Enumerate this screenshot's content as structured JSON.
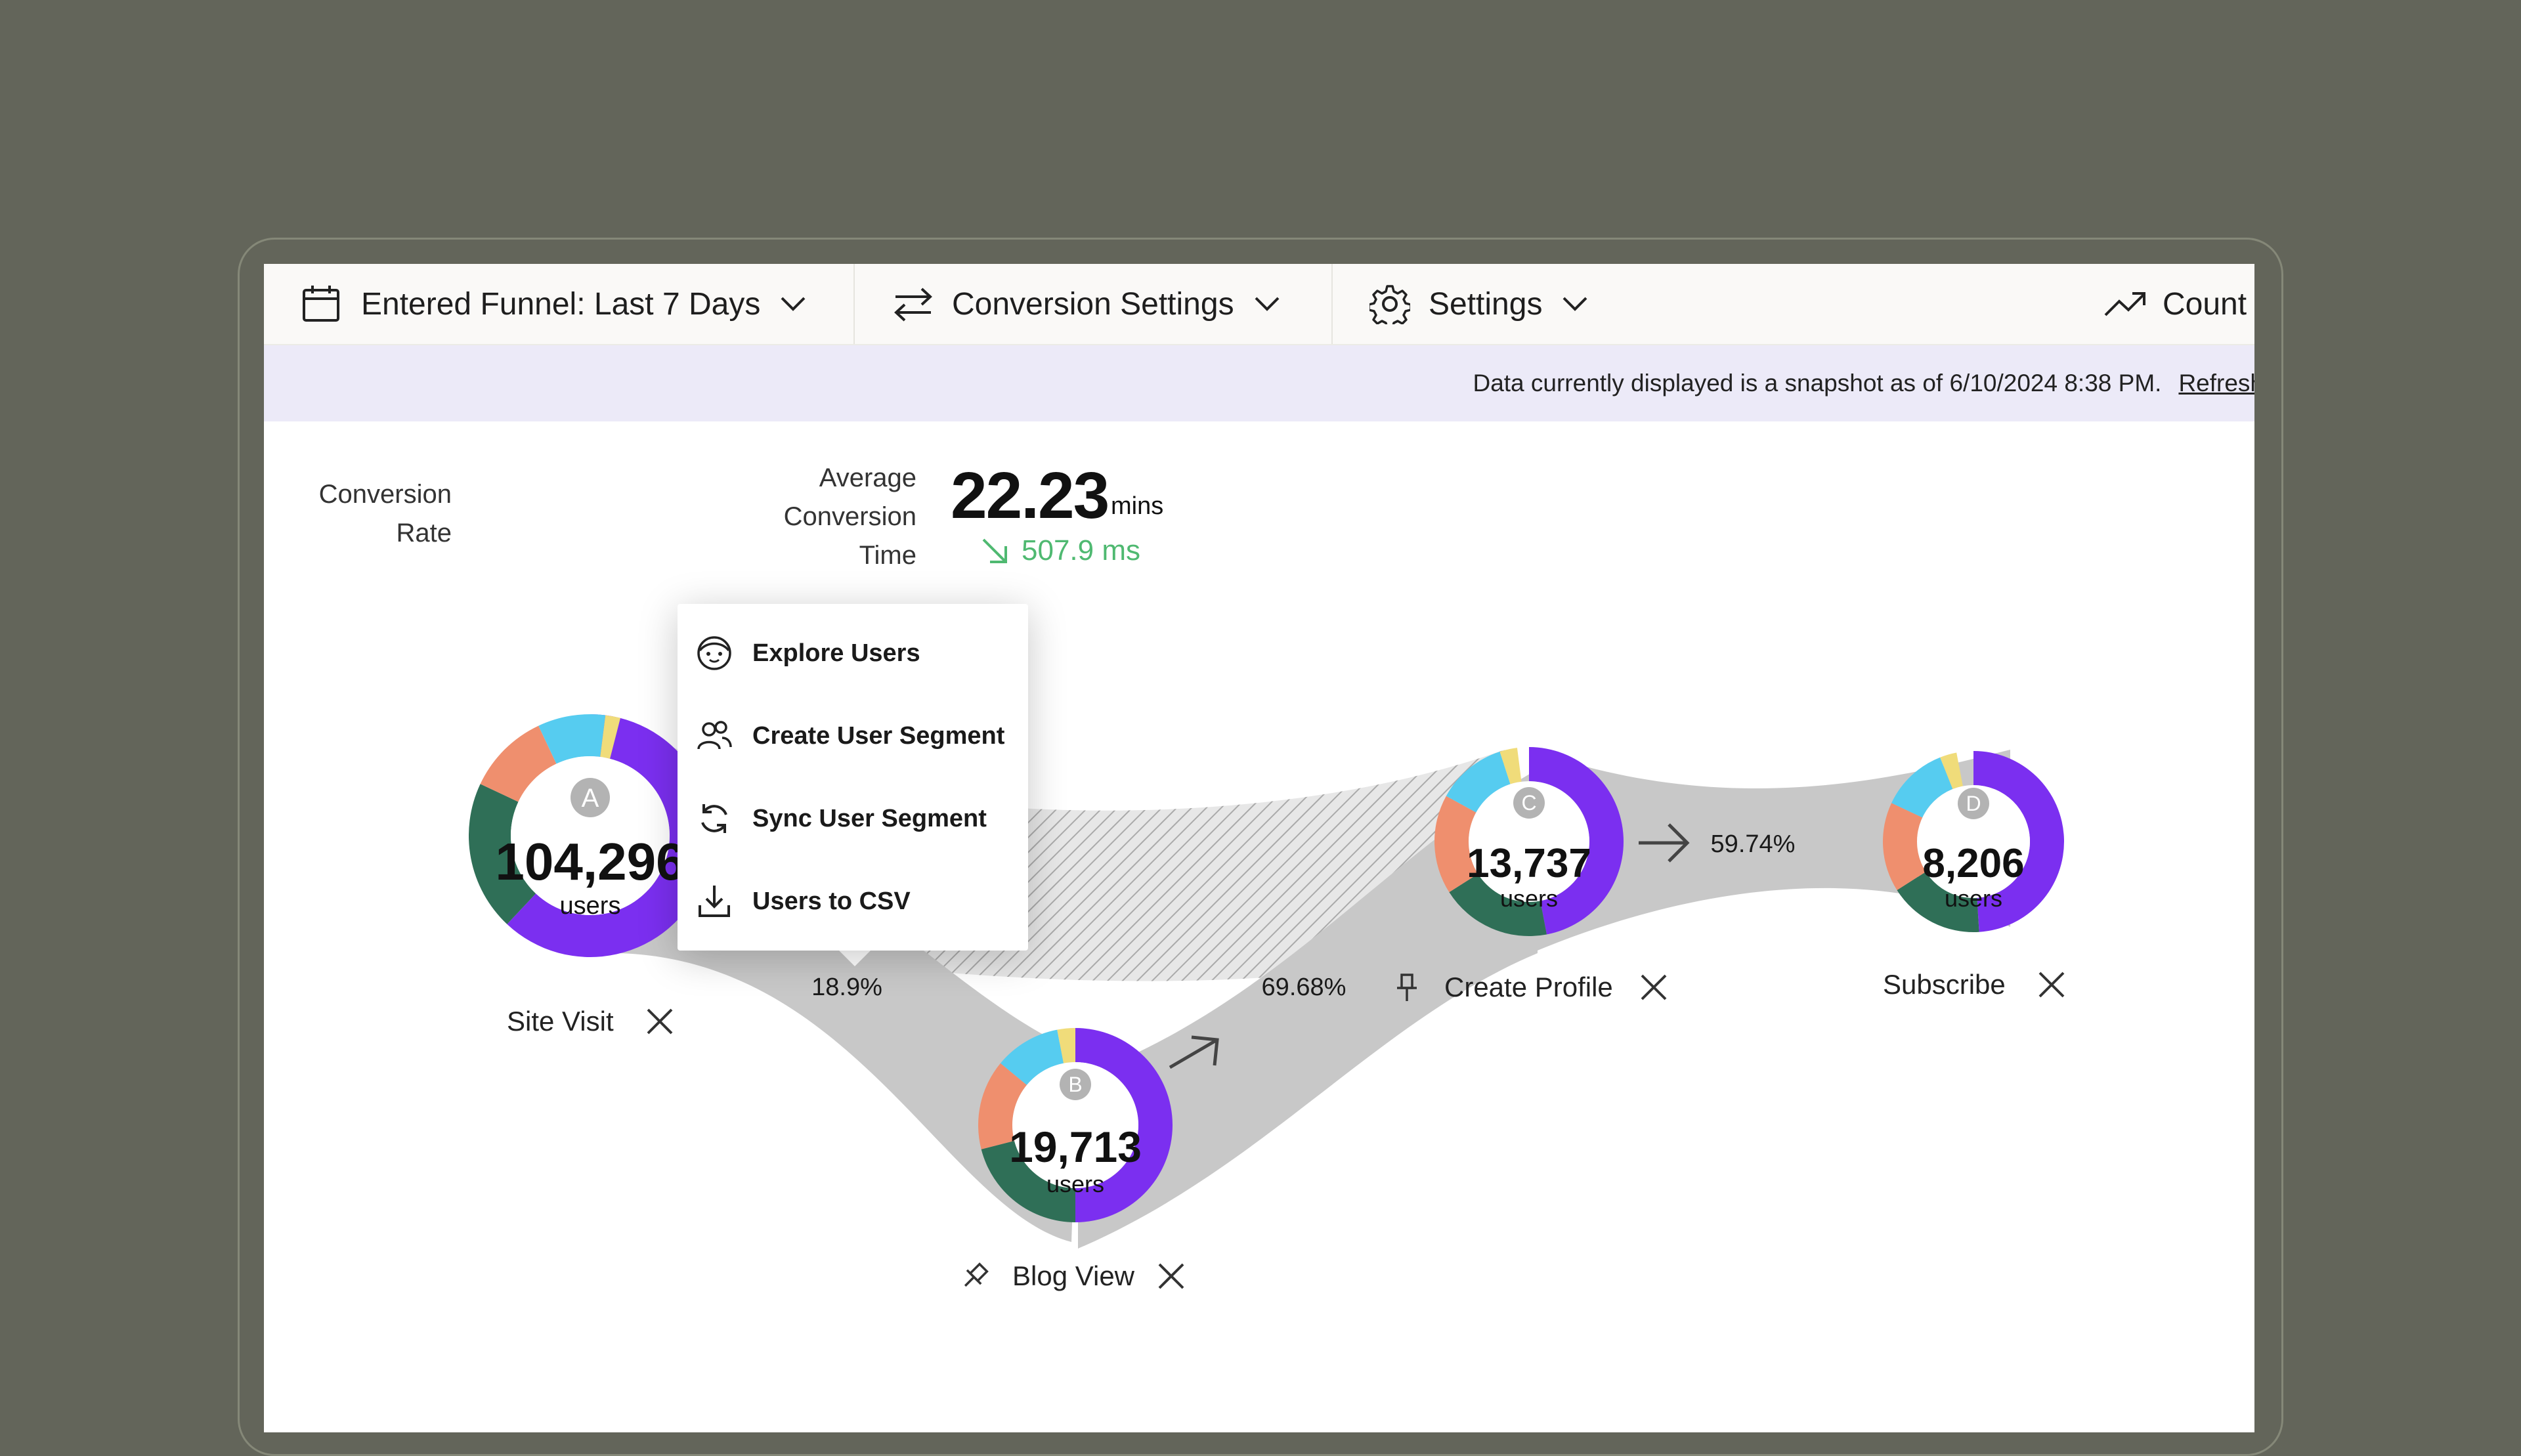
{
  "toolbar": {
    "date_filter": "Entered Funnel: Last 7 Days",
    "conversion_settings": "Conversion Settings",
    "settings": "Settings",
    "chart_type": "Count"
  },
  "banner": {
    "message": "Data currently displayed is a snapshot as of 6/10/2024 8:38 PM.",
    "refresh_link": "Refresh"
  },
  "stats": {
    "conversion_rate_label_line1": "Conversion",
    "conversion_rate_label_line2": "Rate",
    "avg_time_label_line1": "Average",
    "avg_time_label_line2": "Conversion",
    "avg_time_label_line3": "Time",
    "avg_time_value": "22.23",
    "avg_time_unit": "mins",
    "avg_time_delta": "507.9 ms"
  },
  "menu": {
    "items": [
      {
        "label": "Explore Users",
        "icon": "face-icon"
      },
      {
        "label": "Create User Segment",
        "icon": "users-icon"
      },
      {
        "label": "Sync User Segment",
        "icon": "sync-icon"
      },
      {
        "label": "Users to CSV",
        "icon": "download-icon"
      }
    ]
  },
  "colors": {
    "purple": "#7b2ff0",
    "green": "#2f6f57",
    "salmon": "#ef8f6e",
    "cyan": "#56ccf0",
    "yellow": "#f0dc7a",
    "flow": "#c8c8c8",
    "positive": "#4fb971"
  },
  "funnel": {
    "steps": [
      {
        "letter": "A",
        "count": "104,296",
        "unit": "users",
        "name": "Site Visit",
        "segments": [
          0.62,
          0.2,
          0.11,
          0.09,
          0.02
        ]
      },
      {
        "letter": "B",
        "count": "19,713",
        "unit": "users",
        "name": "Blog View",
        "segments": [
          0.5,
          0.21,
          0.15,
          0.11,
          0.03
        ]
      },
      {
        "letter": "C",
        "count": "13,737",
        "unit": "users",
        "name": "Create Profile",
        "segments": [
          0.47,
          0.19,
          0.17,
          0.12,
          0.03
        ]
      },
      {
        "letter": "D",
        "count": "8,206",
        "unit": "users",
        "name": "Subscribe",
        "segments": [
          0.49,
          0.17,
          0.16,
          0.12,
          0.03
        ]
      }
    ],
    "conversions": [
      "18.9%",
      "69.68%",
      "59.74%"
    ]
  }
}
